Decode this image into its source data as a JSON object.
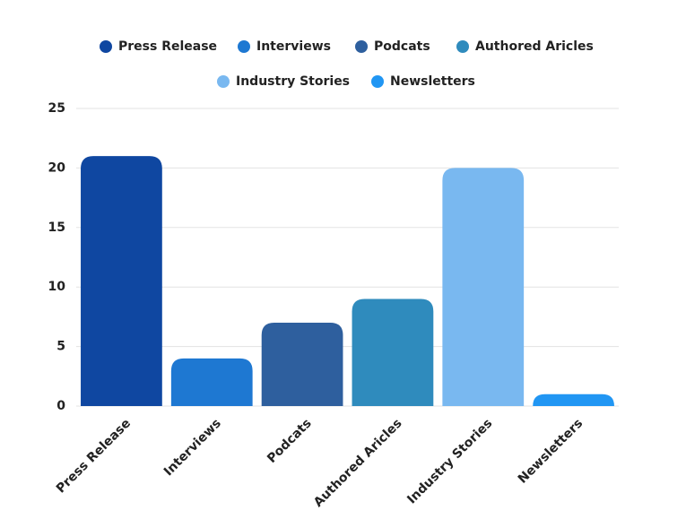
{
  "chart_data": {
    "type": "bar",
    "categories": [
      "Press Release",
      "Interviews",
      "Podcats",
      "Authored Aricles",
      "Industry Stories",
      "Newsletters"
    ],
    "values": [
      21,
      4,
      7,
      9,
      20,
      1
    ],
    "colors": [
      "#0f47a1",
      "#1e78d2",
      "#2e5f9e",
      "#2f8bbd",
      "#79b8f0",
      "#2196f3"
    ],
    "ylim": [
      0,
      25
    ],
    "yticks": [
      0,
      5,
      10,
      15,
      20,
      25
    ],
    "grid": true,
    "legend": "top"
  }
}
